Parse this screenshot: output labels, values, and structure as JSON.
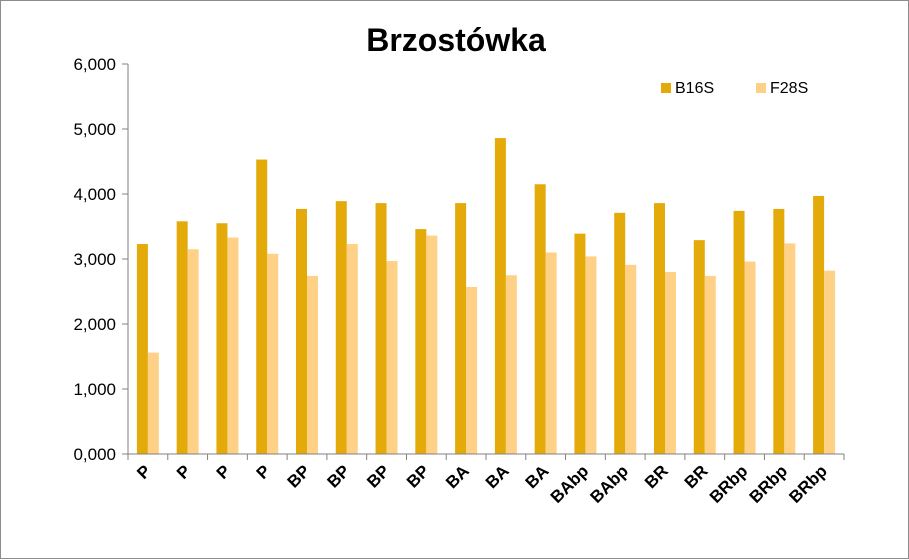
{
  "chart_data": {
    "type": "bar",
    "title": "Brzostówka",
    "xlabel": "",
    "ylabel": "",
    "ylim": [
      0,
      6000
    ],
    "yticks": [
      0,
      1000,
      2000,
      3000,
      4000,
      5000,
      6000
    ],
    "ytick_labels": [
      "0,000",
      "1,000",
      "2,000",
      "3,000",
      "4,000",
      "5,000",
      "6,000"
    ],
    "categories": [
      "P",
      "P",
      "P",
      "P",
      "BP",
      "BP",
      "BP",
      "BP",
      "BA",
      "BA",
      "BA",
      "BAbp",
      "BAbp",
      "BR",
      "BR",
      "BRbp",
      "BRbp",
      "BRbp"
    ],
    "series": [
      {
        "name": "B16S",
        "color": "#e3aa0a",
        "values": [
          3230,
          3580,
          3550,
          4530,
          3770,
          3890,
          3860,
          3460,
          3860,
          4860,
          4150,
          3390,
          3710,
          3860,
          3290,
          3740,
          3770,
          3970
        ]
      },
      {
        "name": "F28S",
        "color": "#ffd187",
        "values": [
          1560,
          3150,
          3330,
          3080,
          2740,
          3230,
          2970,
          3360,
          2570,
          2750,
          3100,
          3040,
          2910,
          2800,
          2740,
          2960,
          3240,
          2820
        ]
      }
    ],
    "legend_position": "top-right",
    "grid": false
  }
}
